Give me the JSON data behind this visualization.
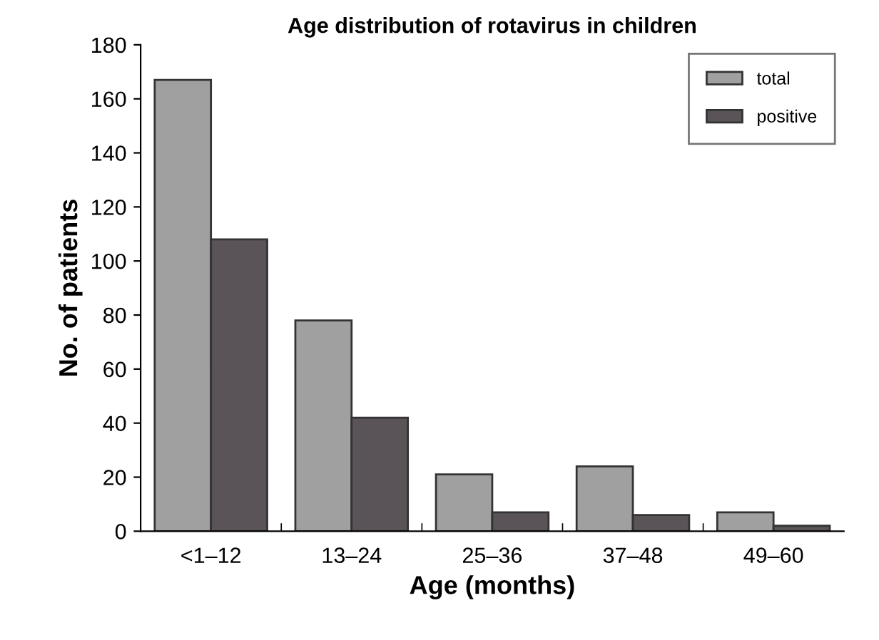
{
  "chart_data": {
    "type": "bar",
    "title": "Age distribution of rotavirus in children",
    "xlabel": "Age (months)",
    "ylabel": "No. of patients",
    "categories": [
      "<1–12",
      "13–24",
      "25–36",
      "37–48",
      "49–60"
    ],
    "series": [
      {
        "name": "total",
        "color": "#a0a0a0",
        "values": [
          167,
          78,
          21,
          24,
          7
        ]
      },
      {
        "name": "positive",
        "color": "#5a5458",
        "values": [
          108,
          42,
          7,
          6,
          2
        ]
      }
    ],
    "ylim": [
      0,
      180
    ],
    "yticks": [
      0,
      20,
      40,
      60,
      80,
      100,
      120,
      140,
      160,
      180
    ],
    "grid": false,
    "legend": "top right"
  }
}
